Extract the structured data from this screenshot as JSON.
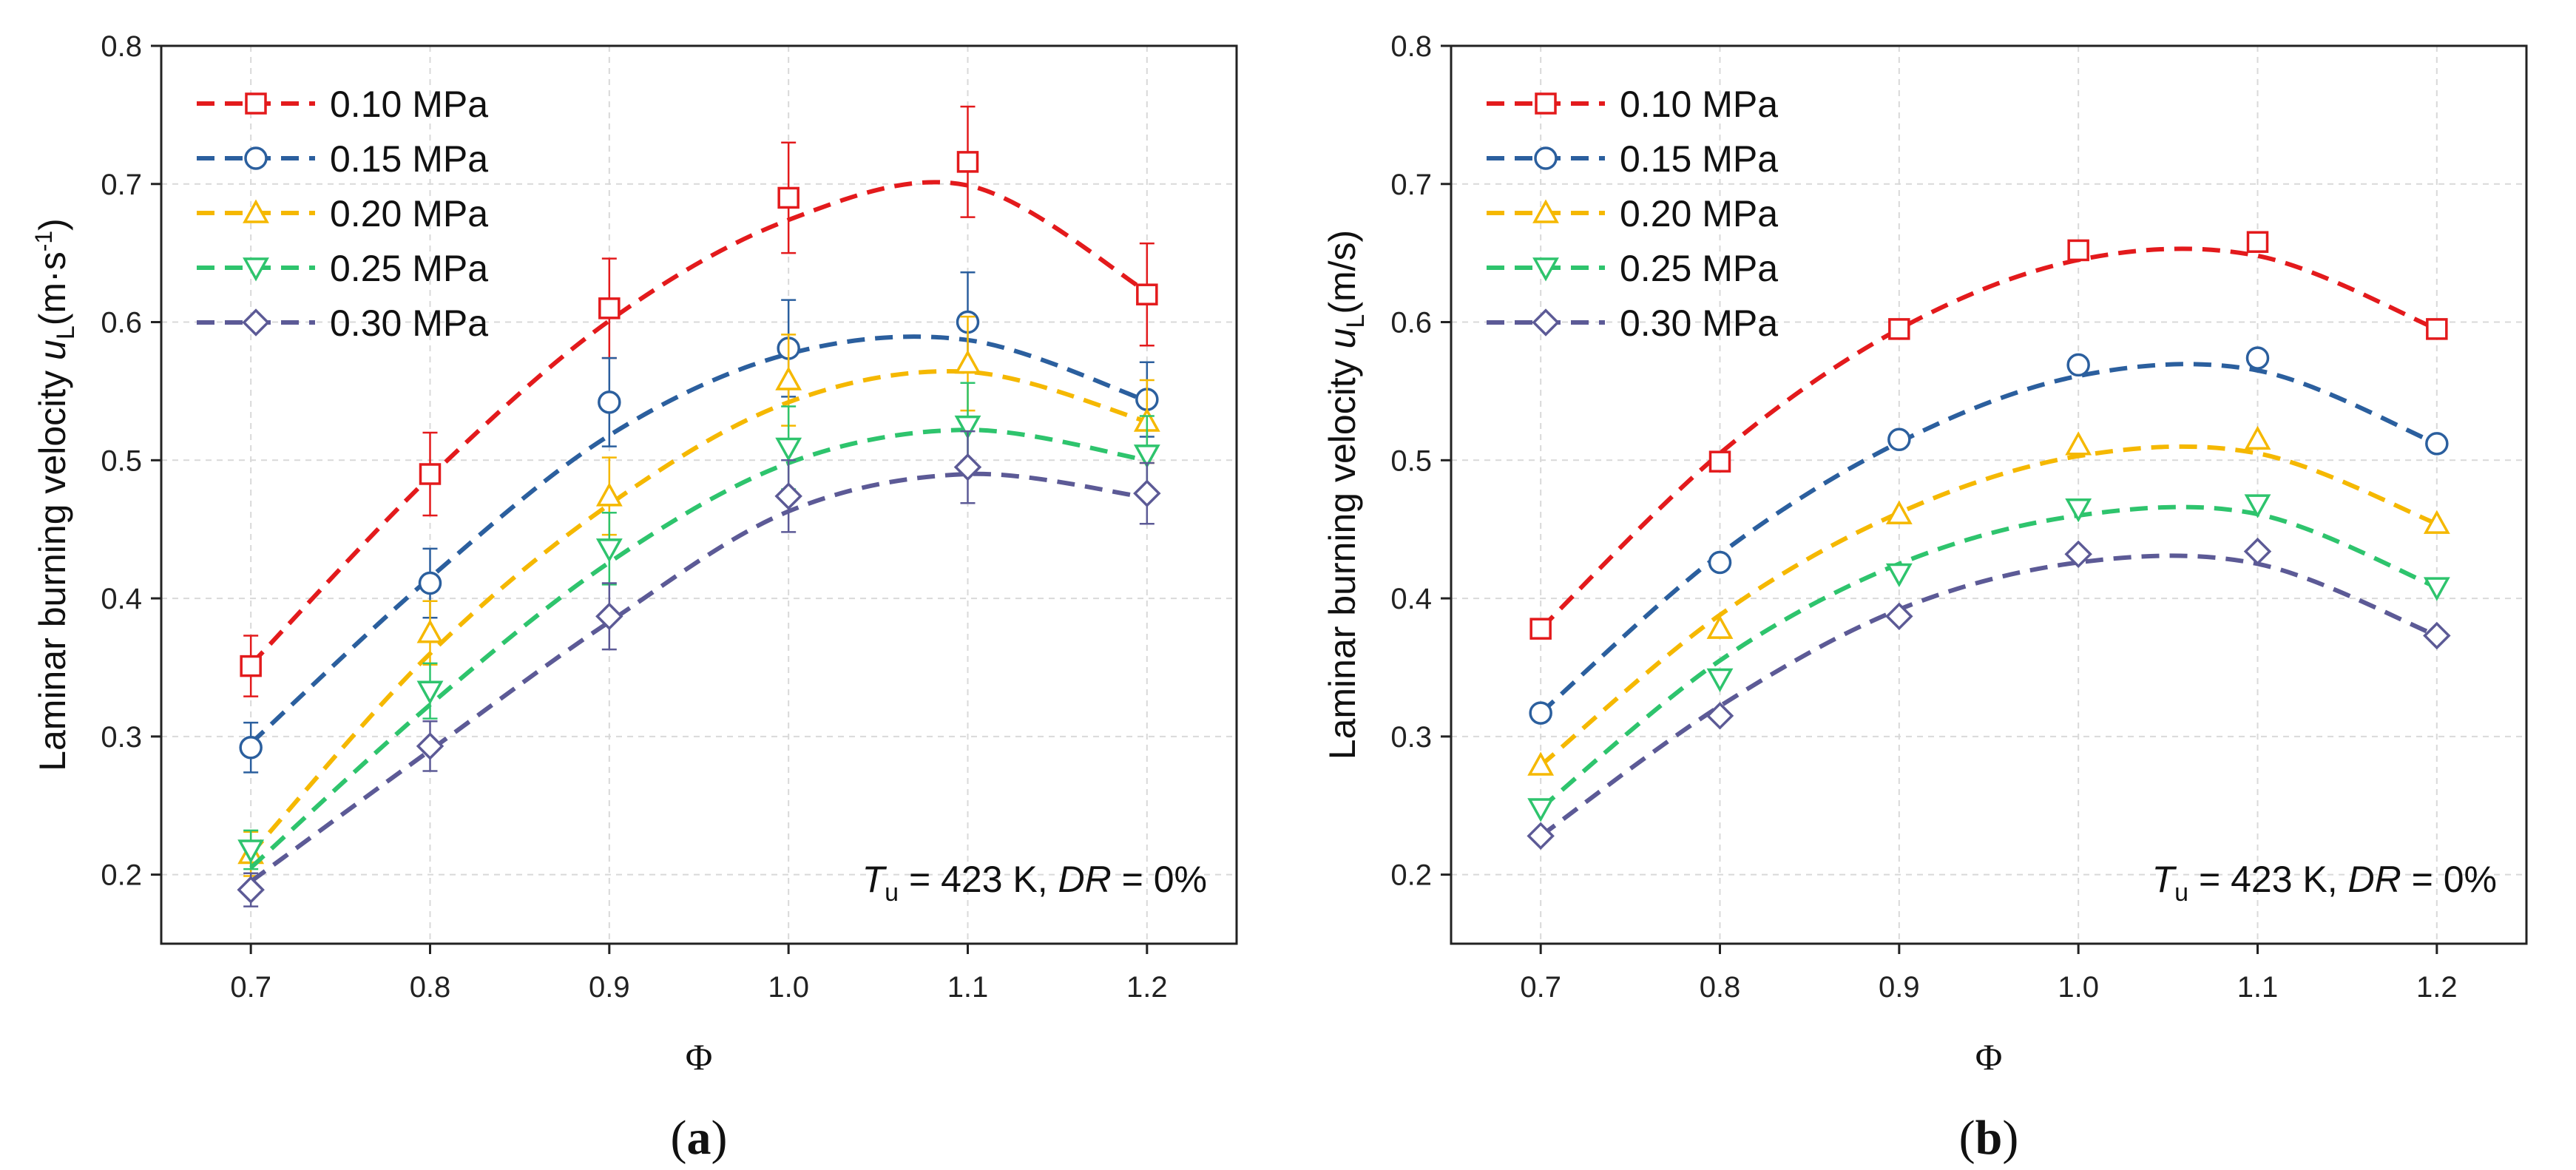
{
  "chart_data": [
    {
      "type": "line",
      "panel_label": "a",
      "xlabel": "Φ",
      "ylabel": {
        "main": "Laminar burning velocity ",
        "var": "u",
        "sub": "L",
        "unit_prefix": "(m·s",
        "unit_sup": "-1",
        "unit_suffix": ")"
      },
      "xlim": [
        0.65,
        1.25
      ],
      "ylim": [
        0.15,
        0.8
      ],
      "xticks": [
        "0.7",
        "0.8",
        "0.9",
        "1.0",
        "1.1",
        "1.2"
      ],
      "yticks": [
        "0.2",
        "0.3",
        "0.4",
        "0.5",
        "0.6",
        "0.7",
        "0.8"
      ],
      "grid": true,
      "legend_position": "top-left",
      "annotation": {
        "T": "T",
        "sub": "u",
        "text1": " = 423 K, ",
        "DR": "DR",
        "text2": " = 0%"
      },
      "x": [
        0.7,
        0.8,
        0.9,
        1.0,
        1.1,
        1.2
      ],
      "series": [
        {
          "name": "0.10 MPa",
          "marker": "square",
          "color": "#e31a1c",
          "values": [
            0.351,
            0.49,
            0.61,
            0.69,
            0.716,
            0.62
          ],
          "errors": [
            0.022,
            0.03,
            0.036,
            0.04,
            0.04,
            0.037
          ],
          "fit": [
            0.352,
            0.488,
            0.601,
            0.674,
            0.699,
            0.622
          ]
        },
        {
          "name": "0.15 MPa",
          "marker": "circle",
          "color": "#2b5f9e",
          "values": [
            0.292,
            0.411,
            0.542,
            0.581,
            0.6,
            0.544
          ],
          "errors": [
            0.018,
            0.025,
            0.032,
            0.035,
            0.036,
            0.027
          ],
          "fit": [
            0.295,
            0.415,
            0.518,
            0.577,
            0.587,
            0.543
          ]
        },
        {
          "name": "0.20 MPa",
          "marker": "triangle-up",
          "color": "#f5b800",
          "values": [
            0.215,
            0.375,
            0.474,
            0.558,
            0.57,
            0.528
          ],
          "errors": [
            0.016,
            0.023,
            0.028,
            0.033,
            0.034,
            0.03
          ],
          "fit": [
            0.215,
            0.36,
            0.468,
            0.542,
            0.564,
            0.528
          ]
        },
        {
          "name": "0.25 MPa",
          "marker": "triangle-down",
          "color": "#2ec46d",
          "values": [
            0.218,
            0.333,
            0.436,
            0.509,
            0.525,
            0.504
          ],
          "errors": [
            0.014,
            0.02,
            0.026,
            0.03,
            0.031,
            0.028
          ],
          "fit": [
            0.205,
            0.323,
            0.426,
            0.498,
            0.522,
            0.5
          ]
        },
        {
          "name": "0.30 MPa",
          "marker": "diamond",
          "color": "#5c5a96",
          "values": [
            0.189,
            0.293,
            0.387,
            0.474,
            0.495,
            0.476
          ],
          "errors": [
            0.012,
            0.018,
            0.024,
            0.026,
            0.026,
            0.022
          ],
          "fit": [
            0.195,
            0.29,
            0.383,
            0.463,
            0.49,
            0.473
          ]
        }
      ]
    },
    {
      "type": "line",
      "panel_label": "b",
      "xlabel": "Φ",
      "ylabel": {
        "main": "Laminar burning velocity ",
        "var": "u",
        "sub": "L",
        "unit_prefix": "(m/s)",
        "unit_sup": "",
        "unit_suffix": ""
      },
      "xlim": [
        0.65,
        1.25
      ],
      "ylim": [
        0.15,
        0.8
      ],
      "xticks": [
        "0.7",
        "0.8",
        "0.9",
        "1.0",
        "1.1",
        "1.2"
      ],
      "yticks": [
        "0.2",
        "0.3",
        "0.4",
        "0.5",
        "0.6",
        "0.7",
        "0.8"
      ],
      "grid": true,
      "legend_position": "top-left",
      "annotation": {
        "T": "T",
        "sub": "u",
        "text1": " = 423 K, ",
        "DR": "DR",
        "text2": " = 0%"
      },
      "x": [
        0.7,
        0.8,
        0.9,
        1.0,
        1.1,
        1.2
      ],
      "series": [
        {
          "name": "0.10 MPa",
          "marker": "square",
          "color": "#e31a1c",
          "values": [
            0.378,
            0.499,
            0.595,
            0.652,
            0.658,
            0.595
          ],
          "fit": [
            0.378,
            0.505,
            0.595,
            0.645,
            0.648,
            0.595
          ]
        },
        {
          "name": "0.15 MPa",
          "marker": "circle",
          "color": "#2b5f9e",
          "values": [
            0.317,
            0.426,
            0.515,
            0.569,
            0.574,
            0.512
          ],
          "fit": [
            0.317,
            0.432,
            0.513,
            0.561,
            0.565,
            0.512
          ]
        },
        {
          "name": "0.20 MPa",
          "marker": "triangle-up",
          "color": "#f5b800",
          "values": [
            0.279,
            0.378,
            0.461,
            0.511,
            0.515,
            0.454
          ],
          "fit": [
            0.279,
            0.388,
            0.462,
            0.503,
            0.505,
            0.454
          ]
        },
        {
          "name": "0.25 MPa",
          "marker": "triangle-down",
          "color": "#2ec46d",
          "values": [
            0.248,
            0.342,
            0.418,
            0.465,
            0.468,
            0.408
          ],
          "fit": [
            0.248,
            0.355,
            0.425,
            0.46,
            0.461,
            0.408
          ]
        },
        {
          "name": "0.30 MPa",
          "marker": "diamond",
          "color": "#5c5a96",
          "values": [
            0.228,
            0.315,
            0.387,
            0.432,
            0.434,
            0.373
          ],
          "fit": [
            0.228,
            0.322,
            0.392,
            0.426,
            0.425,
            0.373
          ]
        }
      ]
    }
  ]
}
